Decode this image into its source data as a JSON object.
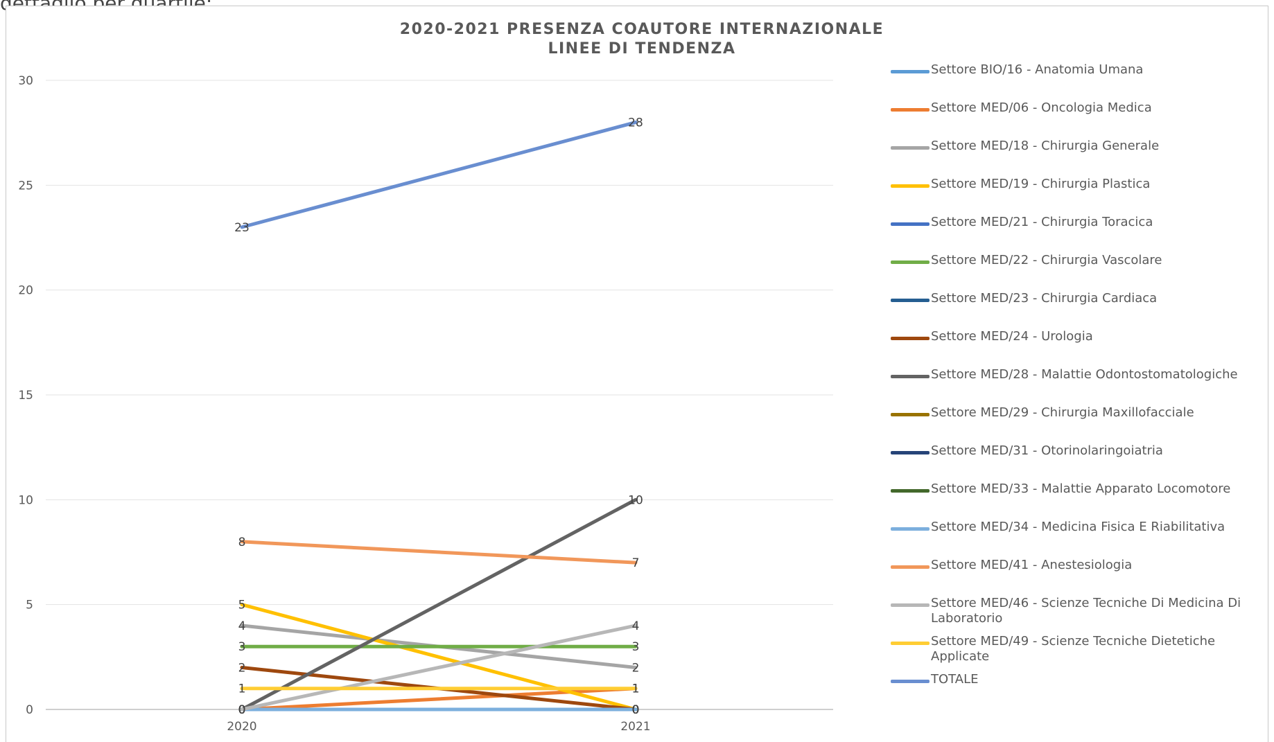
{
  "page": {
    "top_text": "dettaglio per quartile:"
  },
  "chart_data": {
    "type": "line",
    "title_lines": [
      "2020-2021 PRESENZA COAUTORE INTERNAZIONALE",
      "LINEE DI TENDENZA"
    ],
    "x": [
      "2020",
      "2021"
    ],
    "ylim": [
      0,
      30
    ],
    "yticks": [
      0,
      5,
      10,
      15,
      20,
      25,
      30
    ],
    "grid": true,
    "legend_position": "right",
    "series": [
      {
        "name": "Settore BIO/16 - Anatomia Umana",
        "values": [
          0,
          0
        ],
        "color": "#5b9bd5"
      },
      {
        "name": "Settore MED/06 - Oncologia Medica",
        "values": [
          0,
          1
        ],
        "color": "#ed7d31"
      },
      {
        "name": "Settore MED/18 - Chirurgia Generale",
        "values": [
          4,
          2
        ],
        "color": "#a5a5a5"
      },
      {
        "name": "Settore MED/19 - Chirurgia Plastica",
        "values": [
          5,
          0
        ],
        "color": "#ffc000"
      },
      {
        "name": "Settore MED/21 - Chirurgia Toracica",
        "values": [
          0,
          0
        ],
        "color": "#4472c4"
      },
      {
        "name": "Settore MED/22 - Chirurgia Vascolare",
        "values": [
          3,
          3
        ],
        "color": "#70ad47"
      },
      {
        "name": "Settore MED/23 - Chirurgia Cardiaca",
        "values": [
          0,
          0
        ],
        "color": "#255e91"
      },
      {
        "name": "Settore MED/24 - Urologia",
        "values": [
          2,
          0
        ],
        "color": "#9e480e"
      },
      {
        "name": "Settore MED/28 - Malattie Odontostomatologiche",
        "values": [
          0,
          10
        ],
        "color": "#636363"
      },
      {
        "name": "Settore MED/29 - Chirurgia Maxillofacciale",
        "values": [
          0,
          0
        ],
        "color": "#997300"
      },
      {
        "name": "Settore MED/31 - Otorinolaringoiatria",
        "values": [
          0,
          0
        ],
        "color": "#264478"
      },
      {
        "name": "Settore MED/33 - Malattie Apparato Locomotore",
        "values": [
          0,
          0
        ],
        "color": "#43682b"
      },
      {
        "name": "Settore MED/34 - Medicina Fisica E Riabilitativa",
        "values": [
          0,
          0
        ],
        "color": "#7cafdd"
      },
      {
        "name": "Settore MED/41 - Anestesiologia",
        "values": [
          8,
          7
        ],
        "color": "#f1975a"
      },
      {
        "name": "Settore MED/46 - Scienze Tecniche Di Medicina Di Laboratorio",
        "values": [
          0,
          4
        ],
        "color": "#b7b7b7"
      },
      {
        "name": "Settore MED/49 - Scienze Tecniche Dietetiche Applicate",
        "values": [
          1,
          1
        ],
        "color": "#ffcd33"
      },
      {
        "name": "TOTALE",
        "values": [
          23,
          28
        ],
        "color": "#698ed0"
      }
    ]
  }
}
